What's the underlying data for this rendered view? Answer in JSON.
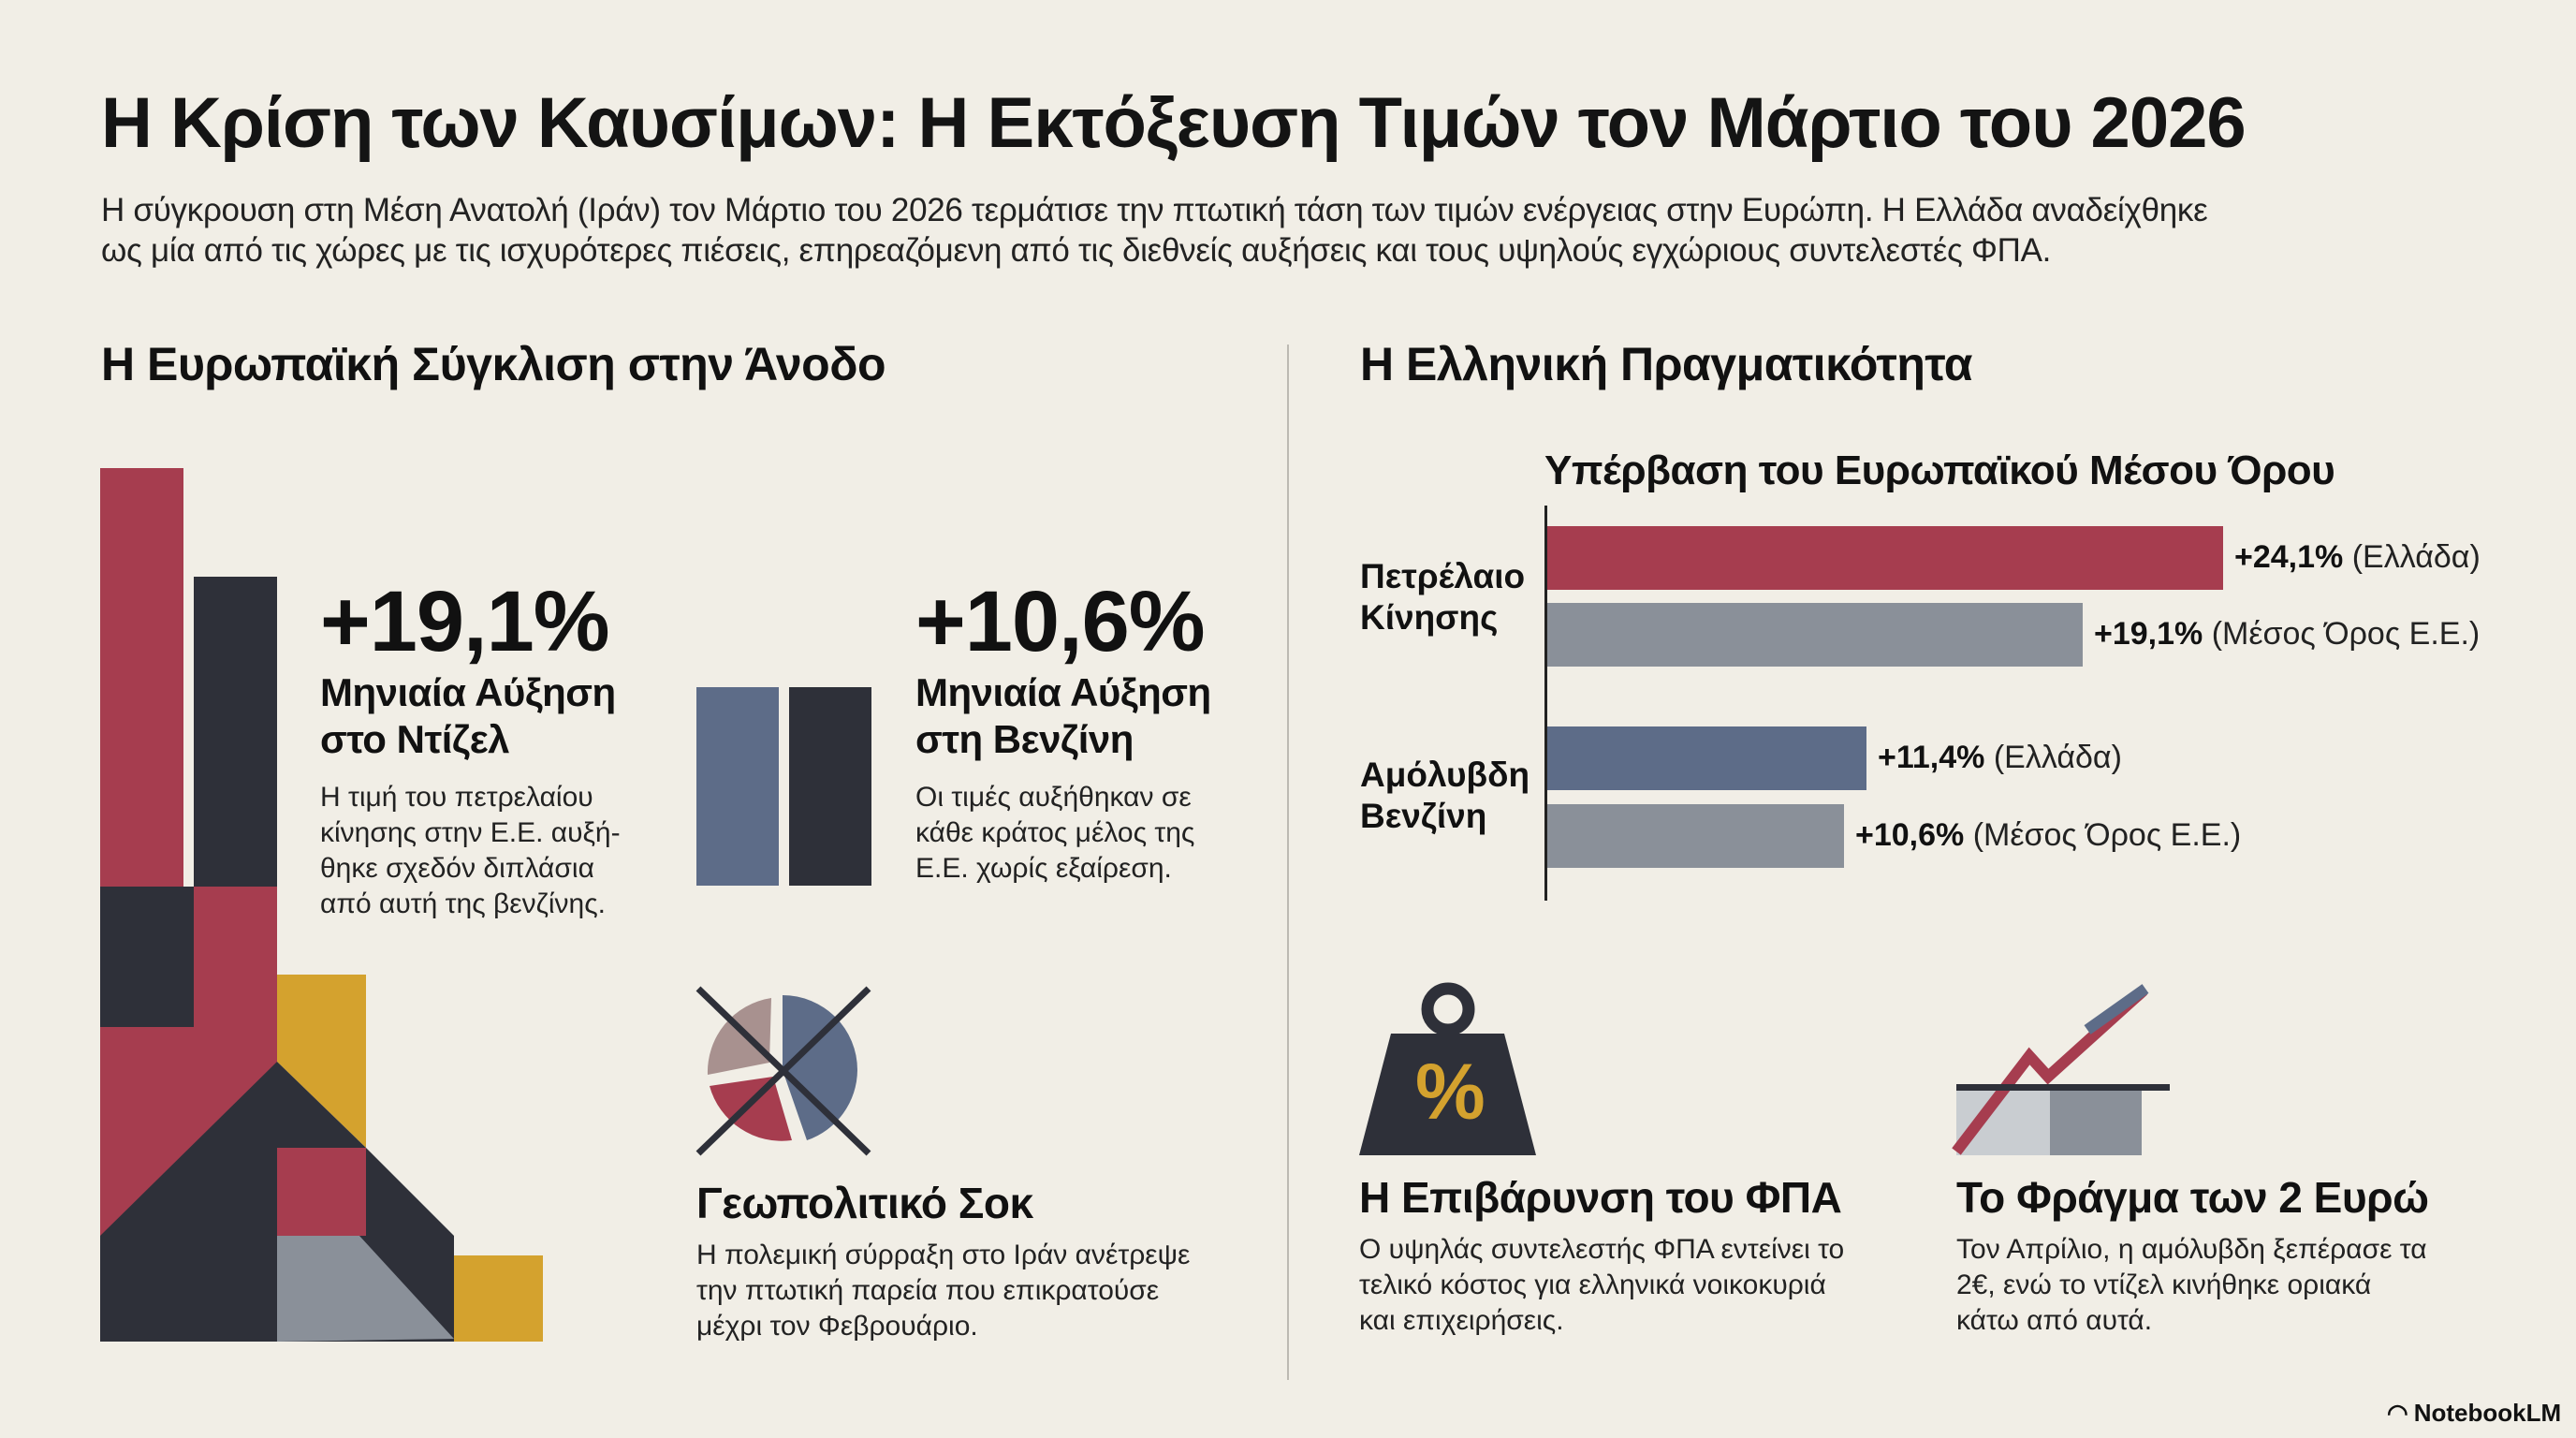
{
  "title": "Η Κρίση των Καυσίμων: Η Εκτόξευση Τιμών τον Μάρτιο του 2026",
  "subtitle": [
    "Η σύγκρουση στη Μέση Ανατολή (Ιράν) τον Μάρτιο του 2026 τερμάτισε την πτωτική τάση των τιμών ενέργειας στην Ευρώπη. Η Ελλάδα αναδείχθηκε",
    "ως μία από τις χώρες με τις ισχυρότερες πιέσεις, επηρεαζόμενη από τις διεθνείς αυξήσεις και τους υψηλούς εγχώριους συντελεστές ΦΠΑ."
  ],
  "left": {
    "heading": "Η Ευρωπαϊκή Σύγκλιση στην Άνοδο",
    "diesel": {
      "value": "+19,1%",
      "label": [
        "Μηνιαία Αύξηση",
        "στο Ντίζελ"
      ],
      "desc": [
        "Η τιμή του πετρελαίου",
        "κίνησης στην Ε.Ε. αυξή-",
        "θηκε σχεδόν διπλάσια",
        "από αυτή της βενζίνης."
      ]
    },
    "petrol": {
      "value": "+10,6%",
      "label": [
        "Μηνιαία Αύξηση",
        "στη Βενζίνη"
      ],
      "desc": [
        "Οι τιμές αυξήθηκαν σε",
        "κάθε κράτος μέλος της",
        "Ε.Ε. χωρίς εξαίρεση."
      ]
    },
    "shock": {
      "heading": "Γεωπολιτικό Σοκ",
      "desc": [
        "Η πολεμική σύρραξη στο Ιράν ανέτρεψε",
        "την πτωτική παρεία που επικρατούσε",
        "μέχρι τον Φεβρουάριο."
      ]
    }
  },
  "right": {
    "heading": "Η Ελληνική Πραγματικότητα",
    "vat": {
      "icon_text": "%",
      "heading": "Η Επιβάρυνση του ΦΠΑ",
      "desc": [
        "Ο υψηλάς συντελεστής ΦΠΑ εντείνει το",
        "τελικό κόστος για ελληνικά νοικοκυριά",
        "και επιχειρήσεις."
      ]
    },
    "barrier": {
      "heading": "Το Φράγμα των 2 Ευρώ",
      "desc": [
        "Τον Απρίλιο, η αμόλυβδη ξεπέρασε τα",
        "2€, ενώ το ντίζελ κινήθηκε οριακά",
        "κάτω από αυτά."
      ]
    }
  },
  "chart_data": {
    "type": "bar",
    "orientation": "horizontal",
    "title": "Υπέρβαση του Ευρωπαϊκού Μέσου Όρου",
    "categories": [
      [
        "Πετρέλαιο",
        "Κίνησης"
      ],
      [
        "Αμόλυβδη",
        "Βενζίνη"
      ]
    ],
    "bars": [
      {
        "category": 0,
        "value": 24.1,
        "value_label": "+24,1%",
        "series_label": "(Ελλάδα)",
        "color": "#a63d4f"
      },
      {
        "category": 0,
        "value": 19.1,
        "value_label": "+19,1%",
        "series_label": "(Μέσος Όρος Ε.Ε.)",
        "color": "#8a9099"
      },
      {
        "category": 1,
        "value": 11.4,
        "value_label": "+11,4%",
        "series_label": "(Ελλάδα)",
        "color": "#5d6c88"
      },
      {
        "category": 1,
        "value": 10.6,
        "value_label": "+10,6%",
        "series_label": "(Μέσος Όρος Ε.Ε.)",
        "color": "#8a9099"
      }
    ],
    "xlim": [
      0,
      25
    ]
  },
  "brand": "NotebookLM",
  "colors": {
    "background": "#f1eee6",
    "red": "#a63d4f",
    "dark": "#2e3039",
    "yellow": "#d4a22e",
    "blue": "#5d6c88",
    "grey": "#8a9099"
  }
}
